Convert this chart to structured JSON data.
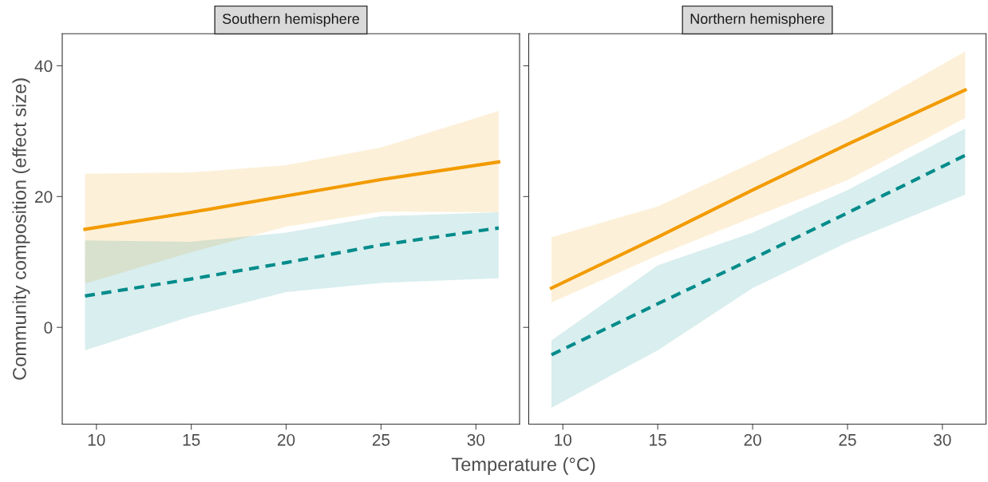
{
  "chart_data": [
    {
      "type": "line",
      "title": "Southern hemisphere",
      "xlabel": "Temperature (°C)",
      "ylabel": "Community composition (effect size)",
      "xlim": [
        8.2,
        32.3
      ],
      "ylim": [
        -14.8,
        44.9
      ],
      "xticks": [
        10,
        15,
        20,
        25,
        30
      ],
      "yticks": [
        0,
        20,
        40
      ],
      "grid": false,
      "legend": false,
      "series": [
        {
          "color": "#f29b00",
          "line_style": "solid",
          "x": [
            9.4,
            15,
            20,
            25,
            31.2
          ],
          "values": [
            15.0,
            17.6,
            20.1,
            22.6,
            25.3
          ],
          "lower": [
            6.7,
            11.5,
            15.4,
            17.7,
            17.6
          ],
          "upper": [
            23.5,
            23.7,
            24.8,
            27.5,
            33.1
          ]
        },
        {
          "color": "#008b8b",
          "line_style": "dashed",
          "x": [
            9.4,
            15,
            20,
            25,
            31.2
          ],
          "values": [
            4.8,
            7.4,
            9.9,
            12.6,
            15.2
          ],
          "lower": [
            -3.5,
            1.7,
            5.4,
            6.8,
            7.5
          ],
          "upper": [
            13.3,
            13.1,
            14.5,
            17.0,
            17.6
          ]
        }
      ]
    },
    {
      "type": "line",
      "title": "Northern hemisphere",
      "xlim": [
        8.2,
        32.3
      ],
      "ylim": [
        -14.8,
        44.9
      ],
      "xticks": [
        10,
        15,
        20,
        25,
        30
      ],
      "yticks": [
        0,
        20,
        40
      ],
      "tick_labels": "x",
      "grid": false,
      "legend": false,
      "series": [
        {
          "color": "#f29b00",
          "line_style": "solid",
          "x": [
            9.4,
            15,
            20,
            25,
            31.2
          ],
          "values": [
            6.0,
            13.8,
            21.0,
            28.0,
            36.3
          ],
          "lower": [
            3.8,
            11.0,
            16.8,
            22.5,
            32.0
          ],
          "upper": [
            13.8,
            18.5,
            25.2,
            32.0,
            42.2
          ]
        },
        {
          "color": "#008b8b",
          "line_style": "dashed",
          "x": [
            9.4,
            15,
            20,
            25,
            31.2
          ],
          "values": [
            -4.2,
            3.6,
            10.5,
            17.5,
            26.3
          ],
          "lower": [
            -12.3,
            -3.5,
            6.0,
            13.0,
            20.3
          ],
          "upper": [
            -2.0,
            9.5,
            14.5,
            21.0,
            30.4
          ]
        }
      ]
    }
  ]
}
